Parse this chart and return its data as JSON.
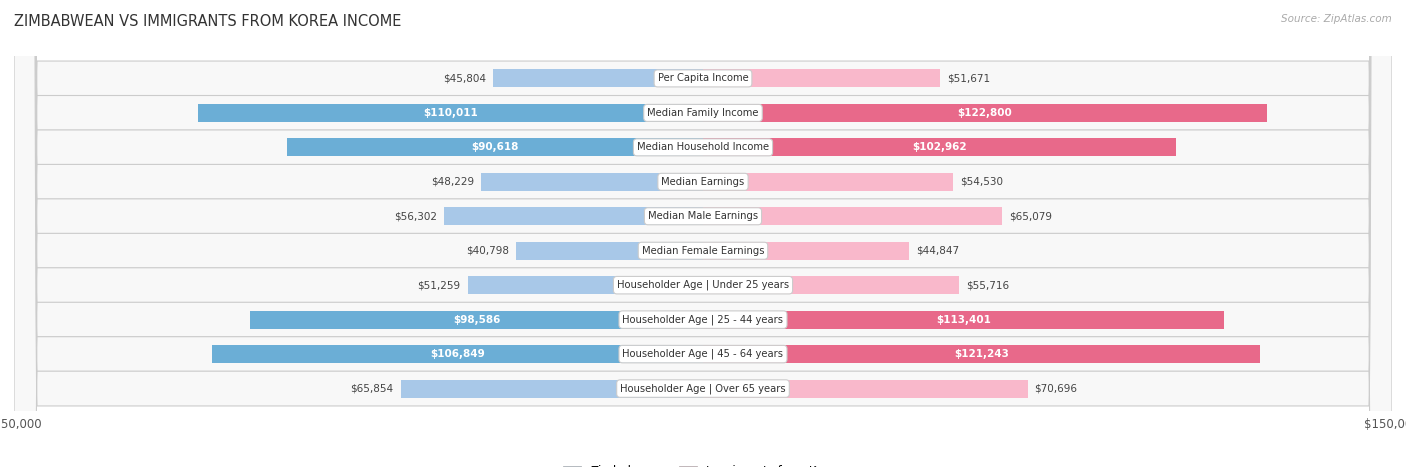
{
  "title": "ZIMBABWEAN VS IMMIGRANTS FROM KOREA INCOME",
  "source": "Source: ZipAtlas.com",
  "categories": [
    "Per Capita Income",
    "Median Family Income",
    "Median Household Income",
    "Median Earnings",
    "Median Male Earnings",
    "Median Female Earnings",
    "Householder Age | Under 25 years",
    "Householder Age | 25 - 44 years",
    "Householder Age | 45 - 64 years",
    "Householder Age | Over 65 years"
  ],
  "zimbabwean_values": [
    45804,
    110011,
    90618,
    48229,
    56302,
    40798,
    51259,
    98586,
    106849,
    65854
  ],
  "korean_values": [
    51671,
    122800,
    102962,
    54530,
    65079,
    44847,
    55716,
    113401,
    121243,
    70696
  ],
  "zimbabwean_labels": [
    "$45,804",
    "$110,011",
    "$90,618",
    "$48,229",
    "$56,302",
    "$40,798",
    "$51,259",
    "$98,586",
    "$106,849",
    "$65,854"
  ],
  "korean_labels": [
    "$51,671",
    "$122,800",
    "$102,962",
    "$54,530",
    "$65,079",
    "$44,847",
    "$55,716",
    "$113,401",
    "$121,243",
    "$70,696"
  ],
  "zim_label_inside": [
    false,
    true,
    true,
    false,
    false,
    false,
    false,
    true,
    true,
    false
  ],
  "kor_label_inside": [
    false,
    true,
    true,
    false,
    false,
    false,
    false,
    true,
    true,
    false
  ],
  "zimbabwean_color_light": "#a8c8e8",
  "zimbabwean_color_dark": "#6baed6",
  "korean_color_light": "#f9b8cb",
  "korean_color_dark": "#e8698a",
  "max_value": 150000,
  "bar_height": 0.52,
  "legend_label_zim": "Zimbabwean",
  "legend_label_kor": "Immigrants from Korea",
  "inside_threshold": 75000
}
